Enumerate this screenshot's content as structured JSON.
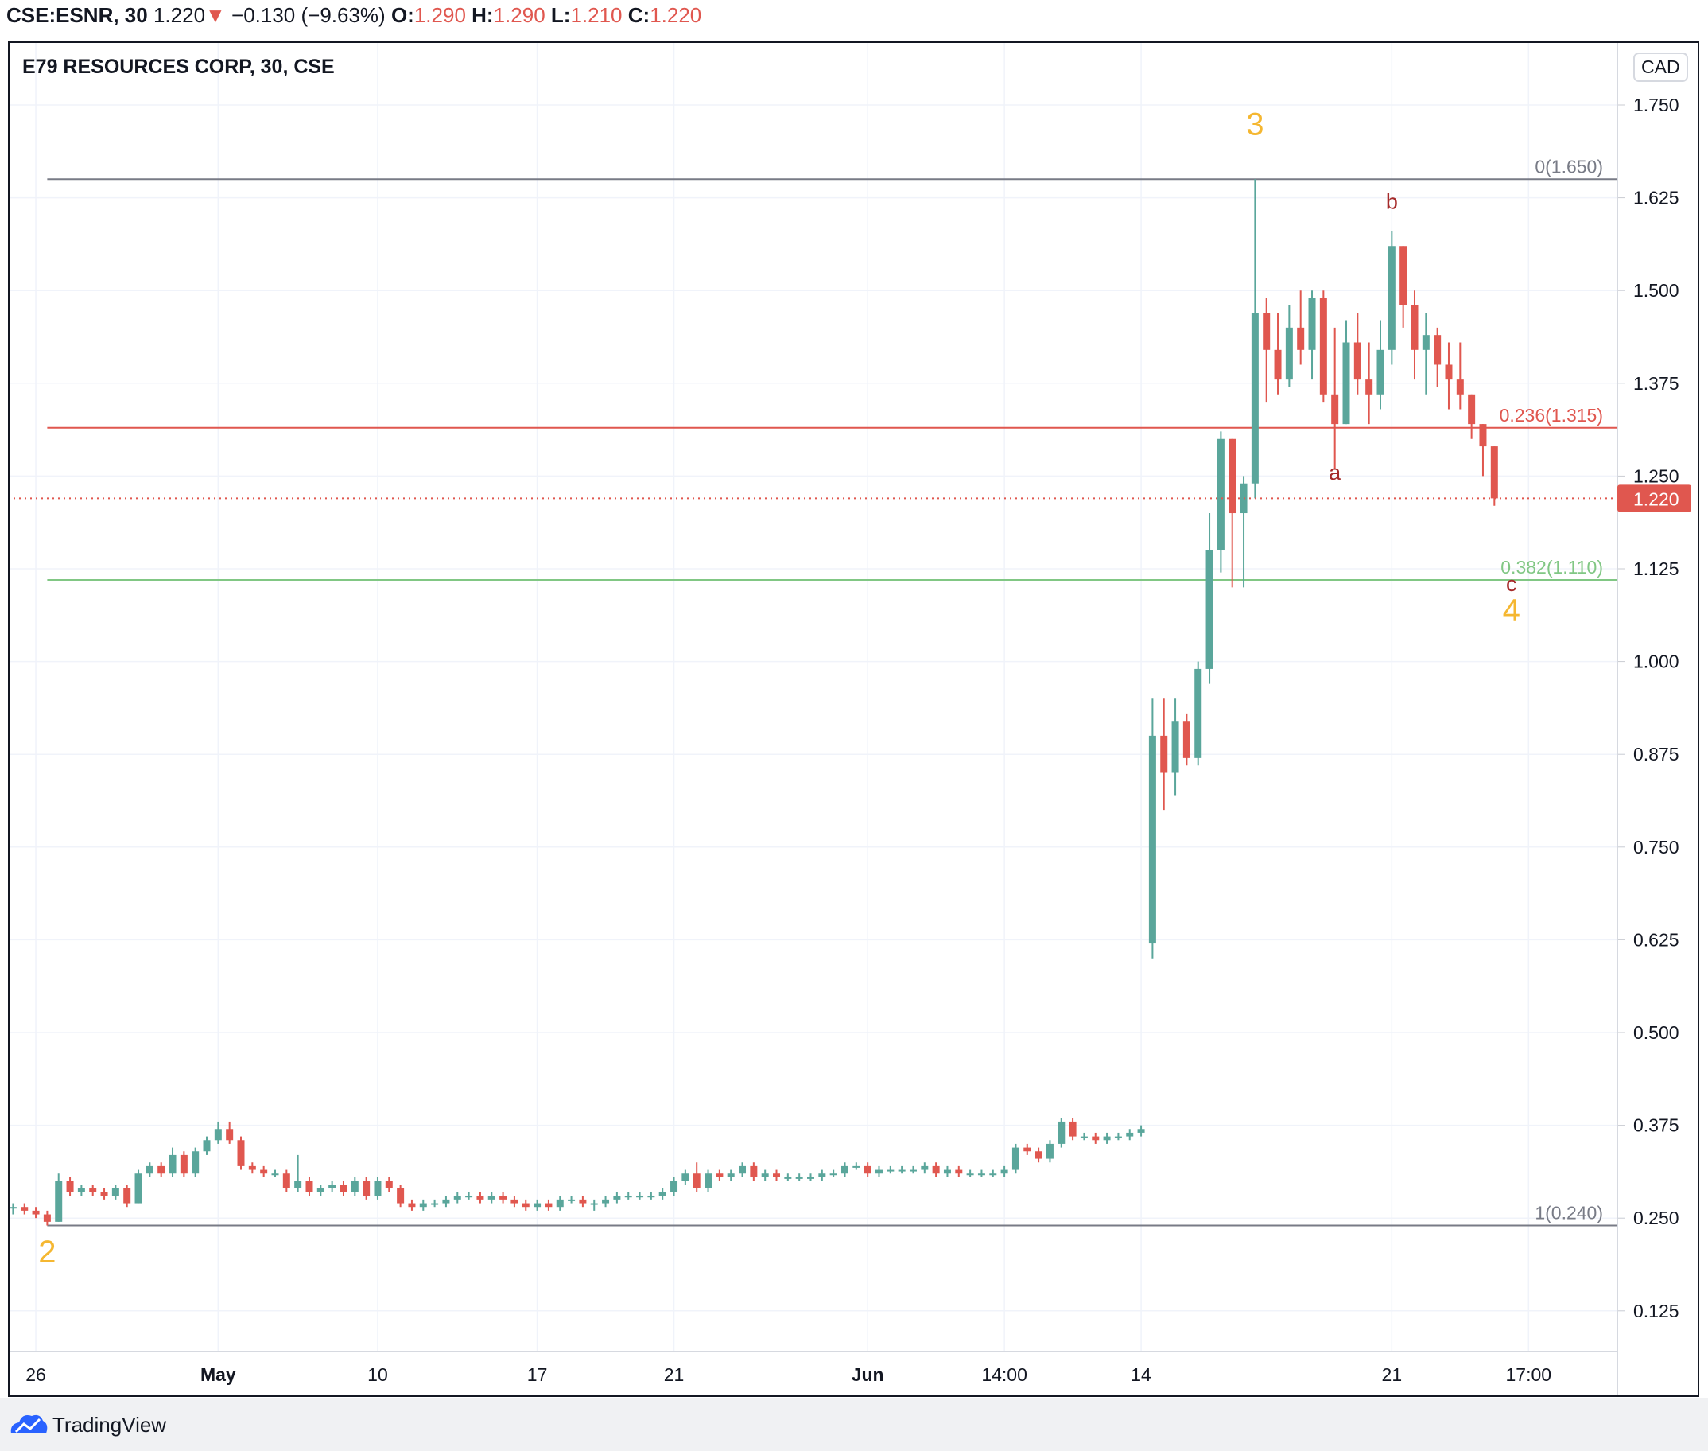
{
  "header": {
    "symbol": "CSE:ESNR, 30",
    "last": "1.220",
    "direction_icon": "triangle-down-icon",
    "change": "−0.130 (−9.63%)",
    "o_label": "O:",
    "o": "1.290",
    "h_label": "H:",
    "h": "1.290",
    "l_label": "L:",
    "l": "1.210",
    "c_label": "C:",
    "c": "1.220"
  },
  "chart_title": "E79 RESOURCES CORP, 30, CSE",
  "currency": "CAD",
  "footer": {
    "brand": "TradingView",
    "logo_icon": "tradingview-cloud-icon"
  },
  "colors": {
    "up": "#5aa69b",
    "down": "#e0574f",
    "wave_major": "#f5b731",
    "wave_minor": "#a52a2a",
    "fib_0": "#787b86",
    "fib_236": "#e0574f",
    "fib_382": "#81c784",
    "fib_1": "#787b86"
  },
  "chart_data": {
    "type": "candlestick",
    "y_ticks": [
      "1.750",
      "1.625",
      "1.500",
      "1.375",
      "1.250",
      "1.125",
      "1.000",
      "0.875",
      "0.750",
      "0.625",
      "0.500",
      "0.375",
      "0.250",
      "0.125"
    ],
    "ylim": [
      0.06,
      1.8
    ],
    "x_ticks": [
      {
        "bar": 2,
        "label": "26",
        "bold": false
      },
      {
        "bar": 18,
        "label": "May",
        "bold": true
      },
      {
        "bar": 32,
        "label": "10",
        "bold": false
      },
      {
        "bar": 46,
        "label": "17",
        "bold": false
      },
      {
        "bar": 58,
        "label": "21",
        "bold": false
      },
      {
        "bar": 75,
        "label": "Jun",
        "bold": true
      },
      {
        "bar": 87,
        "label": "14:00",
        "bold": false
      },
      {
        "bar": 99,
        "label": "14",
        "bold": false
      },
      {
        "bar": 121,
        "label": "21",
        "bold": false
      },
      {
        "bar": 133,
        "label": "17:00",
        "bold": false
      }
    ],
    "grid": true,
    "last_price": {
      "value": 1.22,
      "label": "1.220"
    },
    "fib_levels": [
      {
        "value": 1.65,
        "label": "0(1.650)",
        "color": "#787b86"
      },
      {
        "value": 1.315,
        "label": "0.236(1.315)",
        "color": "#e0574f"
      },
      {
        "value": 1.11,
        "label": "0.382(1.110)",
        "color": "#81c784"
      },
      {
        "value": 0.24,
        "label": "1(0.240)",
        "color": "#787b86"
      }
    ],
    "fib_start_bar": 3,
    "wave_labels": [
      {
        "text": "2",
        "bar": 3,
        "price": 0.19,
        "kind": "major"
      },
      {
        "text": "3",
        "bar": 109,
        "price": 1.71,
        "kind": "major"
      },
      {
        "text": "a",
        "bar": 116,
        "price": 1.245,
        "kind": "minor"
      },
      {
        "text": "b",
        "bar": 121,
        "price": 1.61,
        "kind": "minor"
      },
      {
        "text": "c",
        "bar": 131.5,
        "price": 1.095,
        "kind": "minor"
      },
      {
        "text": "4",
        "bar": 131.5,
        "price": 1.055,
        "kind": "major"
      }
    ],
    "ohlc": [
      [
        0.265,
        0.27,
        0.255,
        0.265
      ],
      [
        0.265,
        0.27,
        0.255,
        0.26
      ],
      [
        0.26,
        0.265,
        0.25,
        0.255
      ],
      [
        0.255,
        0.26,
        0.24,
        0.245
      ],
      [
        0.245,
        0.31,
        0.245,
        0.3
      ],
      [
        0.3,
        0.305,
        0.28,
        0.285
      ],
      [
        0.285,
        0.295,
        0.28,
        0.29
      ],
      [
        0.29,
        0.295,
        0.28,
        0.285
      ],
      [
        0.285,
        0.29,
        0.275,
        0.28
      ],
      [
        0.28,
        0.295,
        0.275,
        0.29
      ],
      [
        0.29,
        0.295,
        0.265,
        0.27
      ],
      [
        0.27,
        0.315,
        0.27,
        0.31
      ],
      [
        0.31,
        0.325,
        0.305,
        0.32
      ],
      [
        0.32,
        0.325,
        0.305,
        0.31
      ],
      [
        0.31,
        0.345,
        0.305,
        0.335
      ],
      [
        0.335,
        0.34,
        0.305,
        0.31
      ],
      [
        0.31,
        0.345,
        0.305,
        0.34
      ],
      [
        0.34,
        0.36,
        0.335,
        0.355
      ],
      [
        0.355,
        0.38,
        0.35,
        0.37
      ],
      [
        0.37,
        0.38,
        0.35,
        0.355
      ],
      [
        0.355,
        0.36,
        0.315,
        0.32
      ],
      [
        0.32,
        0.325,
        0.31,
        0.315
      ],
      [
        0.315,
        0.32,
        0.305,
        0.31
      ],
      [
        0.31,
        0.315,
        0.305,
        0.31
      ],
      [
        0.31,
        0.315,
        0.285,
        0.29
      ],
      [
        0.29,
        0.335,
        0.285,
        0.3
      ],
      [
        0.3,
        0.305,
        0.28,
        0.285
      ],
      [
        0.285,
        0.295,
        0.28,
        0.29
      ],
      [
        0.29,
        0.3,
        0.285,
        0.295
      ],
      [
        0.295,
        0.3,
        0.28,
        0.285
      ],
      [
        0.285,
        0.305,
        0.28,
        0.3
      ],
      [
        0.3,
        0.305,
        0.275,
        0.28
      ],
      [
        0.28,
        0.305,
        0.275,
        0.3
      ],
      [
        0.3,
        0.305,
        0.285,
        0.29
      ],
      [
        0.29,
        0.295,
        0.265,
        0.27
      ],
      [
        0.27,
        0.275,
        0.26,
        0.265
      ],
      [
        0.265,
        0.275,
        0.26,
        0.27
      ],
      [
        0.27,
        0.275,
        0.265,
        0.27
      ],
      [
        0.27,
        0.28,
        0.265,
        0.275
      ],
      [
        0.275,
        0.285,
        0.27,
        0.28
      ],
      [
        0.28,
        0.285,
        0.275,
        0.28
      ],
      [
        0.28,
        0.285,
        0.27,
        0.275
      ],
      [
        0.275,
        0.285,
        0.27,
        0.28
      ],
      [
        0.28,
        0.285,
        0.27,
        0.275
      ],
      [
        0.275,
        0.28,
        0.265,
        0.27
      ],
      [
        0.27,
        0.275,
        0.26,
        0.265
      ],
      [
        0.265,
        0.275,
        0.26,
        0.27
      ],
      [
        0.27,
        0.275,
        0.26,
        0.265
      ],
      [
        0.265,
        0.28,
        0.26,
        0.275
      ],
      [
        0.275,
        0.28,
        0.27,
        0.275
      ],
      [
        0.275,
        0.28,
        0.265,
        0.27
      ],
      [
        0.27,
        0.275,
        0.26,
        0.27
      ],
      [
        0.27,
        0.28,
        0.265,
        0.275
      ],
      [
        0.275,
        0.285,
        0.27,
        0.28
      ],
      [
        0.28,
        0.285,
        0.275,
        0.28
      ],
      [
        0.28,
        0.285,
        0.275,
        0.28
      ],
      [
        0.28,
        0.285,
        0.275,
        0.28
      ],
      [
        0.28,
        0.29,
        0.275,
        0.285
      ],
      [
        0.285,
        0.305,
        0.28,
        0.3
      ],
      [
        0.3,
        0.315,
        0.295,
        0.31
      ],
      [
        0.31,
        0.325,
        0.285,
        0.29
      ],
      [
        0.29,
        0.315,
        0.285,
        0.31
      ],
      [
        0.31,
        0.315,
        0.3,
        0.305
      ],
      [
        0.305,
        0.315,
        0.3,
        0.31
      ],
      [
        0.31,
        0.325,
        0.305,
        0.32
      ],
      [
        0.32,
        0.325,
        0.3,
        0.305
      ],
      [
        0.305,
        0.315,
        0.3,
        0.31
      ],
      [
        0.31,
        0.315,
        0.3,
        0.305
      ],
      [
        0.305,
        0.31,
        0.3,
        0.305
      ],
      [
        0.305,
        0.31,
        0.3,
        0.305
      ],
      [
        0.305,
        0.31,
        0.3,
        0.305
      ],
      [
        0.305,
        0.315,
        0.3,
        0.31
      ],
      [
        0.31,
        0.315,
        0.305,
        0.31
      ],
      [
        0.31,
        0.325,
        0.305,
        0.32
      ],
      [
        0.32,
        0.325,
        0.315,
        0.32
      ],
      [
        0.32,
        0.325,
        0.305,
        0.31
      ],
      [
        0.31,
        0.32,
        0.305,
        0.315
      ],
      [
        0.315,
        0.32,
        0.31,
        0.315
      ],
      [
        0.315,
        0.32,
        0.31,
        0.315
      ],
      [
        0.315,
        0.32,
        0.31,
        0.315
      ],
      [
        0.315,
        0.325,
        0.31,
        0.32
      ],
      [
        0.32,
        0.325,
        0.305,
        0.31
      ],
      [
        0.31,
        0.32,
        0.305,
        0.315
      ],
      [
        0.315,
        0.32,
        0.305,
        0.31
      ],
      [
        0.31,
        0.315,
        0.305,
        0.31
      ],
      [
        0.31,
        0.315,
        0.305,
        0.31
      ],
      [
        0.31,
        0.315,
        0.305,
        0.31
      ],
      [
        0.31,
        0.32,
        0.305,
        0.315
      ],
      [
        0.315,
        0.35,
        0.31,
        0.345
      ],
      [
        0.345,
        0.35,
        0.335,
        0.34
      ],
      [
        0.34,
        0.345,
        0.325,
        0.33
      ],
      [
        0.33,
        0.355,
        0.325,
        0.35
      ],
      [
        0.35,
        0.385,
        0.345,
        0.38
      ],
      [
        0.38,
        0.385,
        0.355,
        0.36
      ],
      [
        0.36,
        0.365,
        0.355,
        0.36
      ],
      [
        0.36,
        0.365,
        0.35,
        0.355
      ],
      [
        0.355,
        0.365,
        0.35,
        0.36
      ],
      [
        0.36,
        0.365,
        0.355,
        0.36
      ],
      [
        0.36,
        0.37,
        0.355,
        0.365
      ],
      [
        0.365,
        0.375,
        0.36,
        0.37
      ],
      [
        0.62,
        0.95,
        0.6,
        0.9
      ],
      [
        0.9,
        0.95,
        0.8,
        0.85
      ],
      [
        0.85,
        0.95,
        0.82,
        0.92
      ],
      [
        0.92,
        0.93,
        0.86,
        0.87
      ],
      [
        0.87,
        1.0,
        0.86,
        0.99
      ],
      [
        0.99,
        1.2,
        0.97,
        1.15
      ],
      [
        1.15,
        1.31,
        1.12,
        1.3
      ],
      [
        1.3,
        1.3,
        1.1,
        1.2
      ],
      [
        1.2,
        1.25,
        1.1,
        1.24
      ],
      [
        1.24,
        1.65,
        1.22,
        1.47
      ],
      [
        1.47,
        1.49,
        1.35,
        1.42
      ],
      [
        1.42,
        1.47,
        1.36,
        1.38
      ],
      [
        1.38,
        1.48,
        1.37,
        1.45
      ],
      [
        1.45,
        1.5,
        1.4,
        1.42
      ],
      [
        1.42,
        1.5,
        1.38,
        1.49
      ],
      [
        1.49,
        1.5,
        1.35,
        1.36
      ],
      [
        1.36,
        1.45,
        1.26,
        1.32
      ],
      [
        1.32,
        1.46,
        1.32,
        1.43
      ],
      [
        1.43,
        1.47,
        1.36,
        1.38
      ],
      [
        1.38,
        1.43,
        1.32,
        1.36
      ],
      [
        1.36,
        1.46,
        1.34,
        1.42
      ],
      [
        1.42,
        1.58,
        1.4,
        1.56
      ],
      [
        1.56,
        1.56,
        1.45,
        1.48
      ],
      [
        1.48,
        1.5,
        1.38,
        1.42
      ],
      [
        1.42,
        1.47,
        1.36,
        1.44
      ],
      [
        1.44,
        1.45,
        1.37,
        1.4
      ],
      [
        1.4,
        1.43,
        1.34,
        1.38
      ],
      [
        1.38,
        1.43,
        1.34,
        1.36
      ],
      [
        1.36,
        1.36,
        1.3,
        1.32
      ],
      [
        1.32,
        1.32,
        1.25,
        1.29
      ],
      [
        1.29,
        1.29,
        1.21,
        1.22
      ]
    ]
  }
}
